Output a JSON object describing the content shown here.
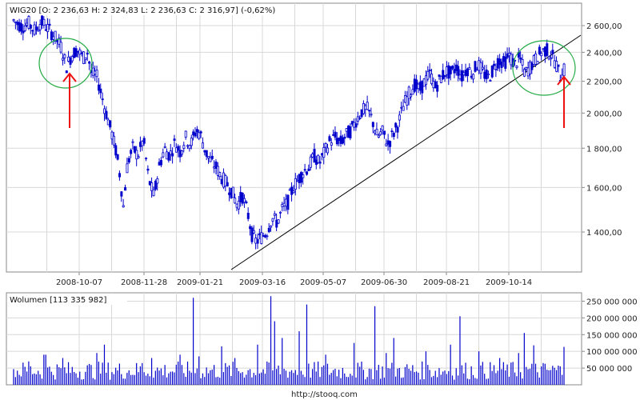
{
  "colors": {
    "price": "#0000cc",
    "volume": "#0000cc",
    "grid": "#d8d8d8",
    "frame": "#888888",
    "trendline": "#000000",
    "circle": "#22aa44",
    "arrow": "#ee1111"
  },
  "chart_data": [
    {
      "type": "candlestick",
      "header": "WIG20 [O: 2 236,63  H: 2 324,83  L: 2 236,63  C: 2 316,97] (-0,62%)",
      "x_ticks": [
        "2008-10-07",
        "2008-11-28",
        "2009-01-21",
        "2009-03-16",
        "2009-05-07",
        "2009-06-30",
        "2009-08-21",
        "2009-10-14"
      ],
      "y_ticks": [
        {
          "value": 2600,
          "label": "2 600,00"
        },
        {
          "value": 2400,
          "label": "2 400,00"
        },
        {
          "value": 2200,
          "label": "2 200,00"
        },
        {
          "value": 2000,
          "label": "2 000,00"
        },
        {
          "value": 1800,
          "label": "1 800,00"
        },
        {
          "value": 1600,
          "label": "1 600,00"
        },
        {
          "value": 1400,
          "label": "1 400,00"
        }
      ],
      "ylim": [
        1260,
        2680
      ],
      "y_scale": "log",
      "grid": true,
      "price_path": [
        [
          0,
          2640
        ],
        [
          8,
          2590
        ],
        [
          14,
          2620
        ],
        [
          20,
          2560
        ],
        [
          26,
          2630
        ],
        [
          30,
          2600
        ],
        [
          36,
          2545
        ],
        [
          40,
          2500
        ],
        [
          45,
          2440
        ],
        [
          50,
          2300
        ],
        [
          55,
          2380
        ],
        [
          60,
          2420
        ],
        [
          66,
          2360
        ],
        [
          70,
          2400
        ],
        [
          74,
          2240
        ],
        [
          78,
          2250
        ],
        [
          82,
          2150
        ],
        [
          86,
          2040
        ],
        [
          90,
          1950
        ],
        [
          94,
          1860
        ],
        [
          98,
          1760
        ],
        [
          101,
          1650
        ],
        [
          104,
          1510
        ],
        [
          108,
          1720
        ],
        [
          113,
          1800
        ],
        [
          118,
          1760
        ],
        [
          123,
          1850
        ],
        [
          128,
          1640
        ],
        [
          133,
          1560
        ],
        [
          138,
          1700
        ],
        [
          143,
          1800
        ],
        [
          148,
          1760
        ],
        [
          153,
          1830
        ],
        [
          158,
          1780
        ],
        [
          163,
          1860
        ],
        [
          168,
          1820
        ],
        [
          173,
          1900
        ],
        [
          177,
          1880
        ],
        [
          182,
          1780
        ],
        [
          187,
          1730
        ],
        [
          192,
          1700
        ],
        [
          197,
          1650
        ],
        [
          202,
          1620
        ],
        [
          207,
          1580
        ],
        [
          212,
          1520
        ],
        [
          217,
          1560
        ],
        [
          222,
          1480
        ],
        [
          226,
          1390
        ],
        [
          230,
          1360
        ],
        [
          235,
          1380
        ],
        [
          240,
          1400
        ],
        [
          245,
          1460
        ],
        [
          250,
          1440
        ],
        [
          255,
          1500
        ],
        [
          260,
          1530
        ],
        [
          265,
          1600
        ],
        [
          270,
          1640
        ],
        [
          275,
          1680
        ],
        [
          280,
          1700
        ],
        [
          285,
          1760
        ],
        [
          290,
          1720
        ],
        [
          295,
          1780
        ],
        [
          300,
          1840
        ],
        [
          305,
          1860
        ],
        [
          310,
          1830
        ],
        [
          315,
          1870
        ],
        [
          320,
          1900
        ],
        [
          325,
          1960
        ],
        [
          330,
          2010
        ],
        [
          335,
          2030
        ],
        [
          340,
          1960
        ],
        [
          345,
          1860
        ],
        [
          350,
          1890
        ],
        [
          355,
          1820
        ],
        [
          360,
          1880
        ],
        [
          365,
          1940
        ],
        [
          370,
          2050
        ],
        [
          375,
          2120
        ],
        [
          380,
          2180
        ],
        [
          385,
          2140
        ],
        [
          390,
          2200
        ],
        [
          395,
          2250
        ],
        [
          400,
          2160
        ],
        [
          405,
          2220
        ],
        [
          410,
          2270
        ],
        [
          415,
          2250
        ],
        [
          420,
          2300
        ],
        [
          425,
          2230
        ],
        [
          430,
          2290
        ],
        [
          435,
          2250
        ],
        [
          440,
          2320
        ],
        [
          445,
          2260
        ],
        [
          450,
          2220
        ],
        [
          455,
          2280
        ],
        [
          460,
          2350
        ],
        [
          465,
          2320
        ],
        [
          470,
          2380
        ],
        [
          475,
          2310
        ],
        [
          480,
          2360
        ],
        [
          485,
          2250
        ],
        [
          490,
          2300
        ],
        [
          495,
          2350
        ],
        [
          500,
          2400
        ],
        [
          505,
          2420
        ],
        [
          510,
          2380
        ],
        [
          514,
          2330
        ],
        [
          518,
          2230
        ],
        [
          522,
          2300
        ]
      ],
      "last_candle": {
        "open": 2236.63,
        "high": 2324.83,
        "low": 2236.63,
        "close": 2316.97
      }
    },
    {
      "type": "bar",
      "header": "Wolumen [113 335 982]",
      "y_ticks": [
        {
          "value": 250000000,
          "label": "250 000 000"
        },
        {
          "value": 200000000,
          "label": "200 000 000"
        },
        {
          "value": 150000000,
          "label": "150 000 000"
        },
        {
          "value": 100000000,
          "label": "100 000 000"
        },
        {
          "value": 50000000,
          "label": "50 000 000"
        }
      ],
      "ylim": [
        0,
        275000000
      ],
      "last_value": 113335982,
      "spikes": [
        [
          18,
          70000000
        ],
        [
          39,
          90000000
        ],
        [
          61,
          80000000
        ],
        [
          104,
          95000000
        ],
        [
          113,
          120000000
        ],
        [
          160,
          65000000
        ],
        [
          172,
          80000000
        ],
        [
          208,
          90000000
        ],
        [
          225,
          260000000
        ],
        [
          232,
          85000000
        ],
        [
          261,
          115000000
        ],
        [
          276,
          80000000
        ],
        [
          304,
          120000000
        ],
        [
          321,
          265000000
        ],
        [
          326,
          190000000
        ],
        [
          336,
          140000000
        ],
        [
          357,
          160000000
        ],
        [
          367,
          240000000
        ],
        [
          391,
          90000000
        ],
        [
          426,
          125000000
        ],
        [
          451,
          235000000
        ],
        [
          466,
          95000000
        ],
        [
          476,
          140000000
        ],
        [
          516,
          100000000
        ],
        [
          547,
          120000000
        ],
        [
          557,
          205000000
        ],
        [
          582,
          100000000
        ],
        [
          607,
          80000000
        ],
        [
          630,
          95000000
        ],
        [
          639,
          155000000
        ],
        [
          650,
          118000000
        ]
      ]
    }
  ],
  "annotations": {
    "trendline": [
      [
        289,
        337
      ],
      [
        726,
        44
      ]
    ],
    "circles": [
      {
        "cx": 82,
        "cy": 79,
        "rx": 33,
        "ry": 31
      },
      {
        "cx": 680,
        "cy": 85,
        "rx": 39,
        "ry": 34
      }
    ],
    "arrows": [
      {
        "x": 87,
        "y_from": 160,
        "y_to": 92
      },
      {
        "x": 705,
        "y_from": 160,
        "y_to": 96
      }
    ]
  },
  "footer": {
    "source": "http://stooq.com"
  }
}
